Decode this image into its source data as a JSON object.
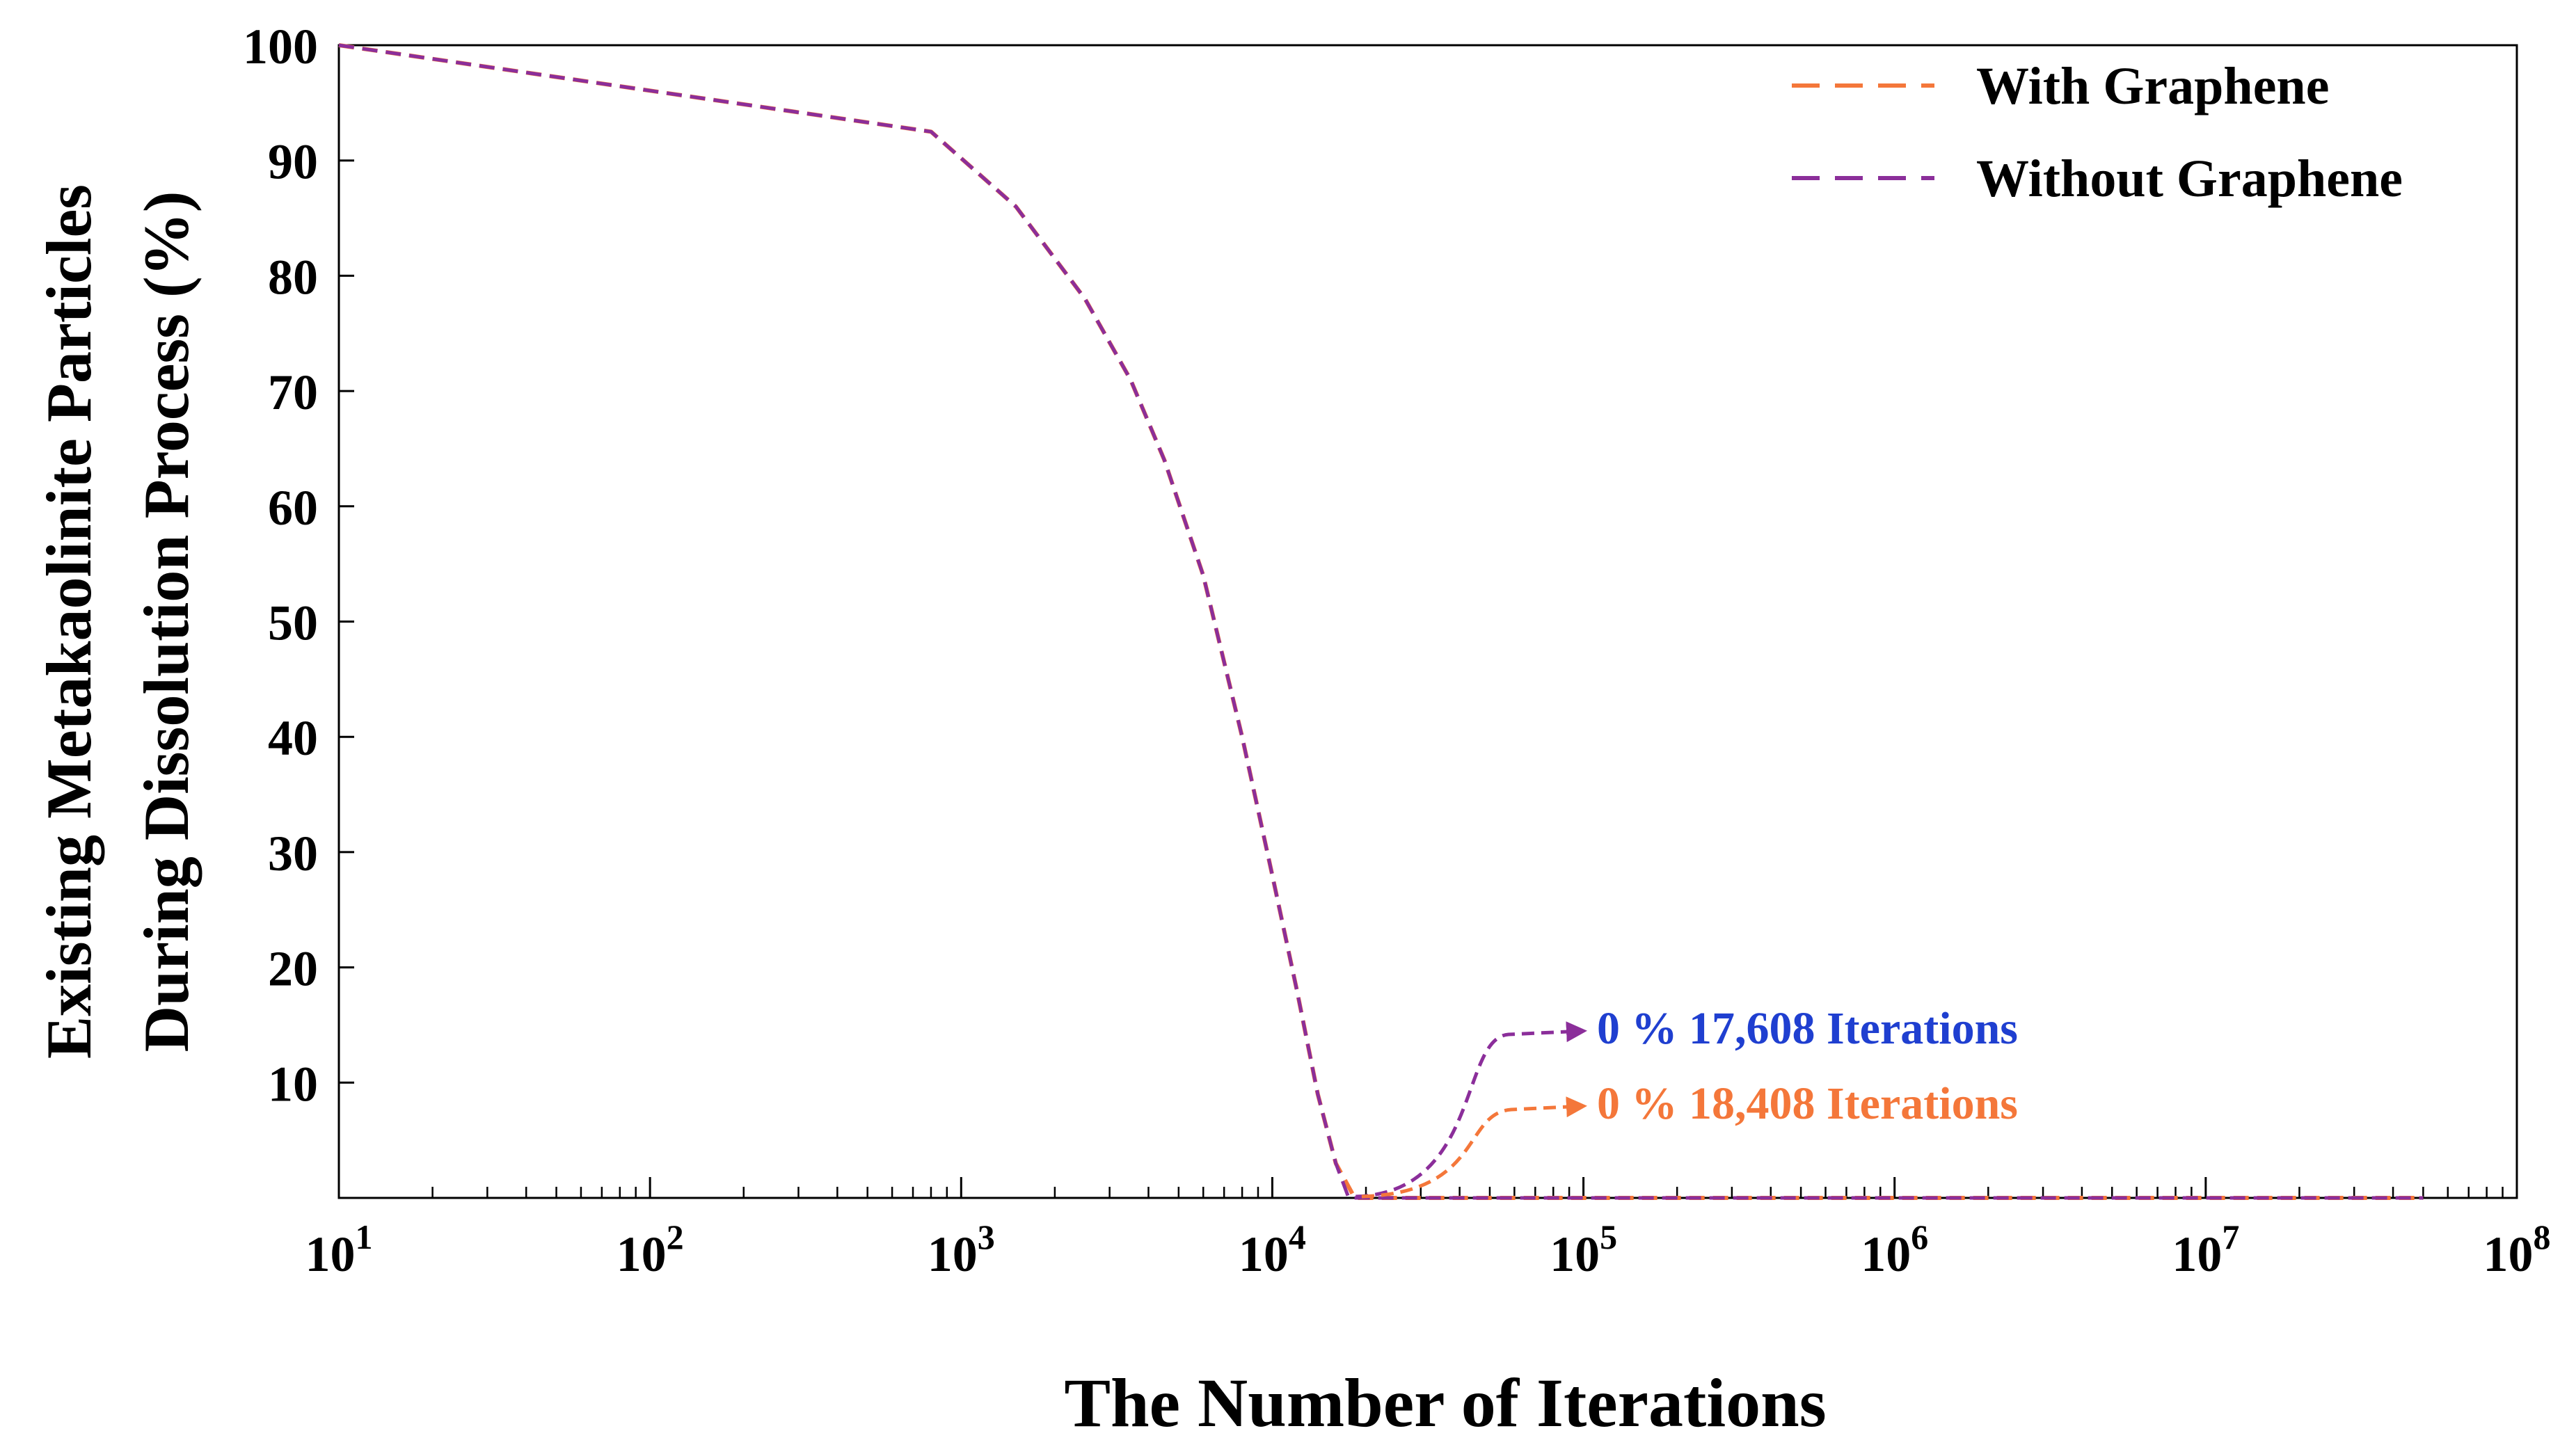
{
  "chart_data": {
    "type": "line",
    "title": "",
    "xlabel": "The Number of Iterations",
    "ylabel_line1": "Existing Metakaolinite Particles",
    "ylabel_line2": "During Dissolution Process (%)",
    "xscale": "log",
    "xlim": [
      10,
      100000000
    ],
    "ylim": [
      0,
      100
    ],
    "grid": false,
    "x_ticks": [
      {
        "value": 10,
        "base": "10",
        "exp": "1"
      },
      {
        "value": 100,
        "base": "10",
        "exp": "2"
      },
      {
        "value": 1000,
        "base": "10",
        "exp": "3"
      },
      {
        "value": 10000,
        "base": "10",
        "exp": "4"
      },
      {
        "value": 100000,
        "base": "10",
        "exp": "5"
      },
      {
        "value": 1000000,
        "base": "10",
        "exp": "6"
      },
      {
        "value": 10000000,
        "base": "10",
        "exp": "7"
      },
      {
        "value": 100000000,
        "base": "10",
        "exp": "8"
      }
    ],
    "y_ticks": [
      {
        "value": 10,
        "label": "10"
      },
      {
        "value": 20,
        "label": "20"
      },
      {
        "value": 30,
        "label": "30"
      },
      {
        "value": 40,
        "label": "40"
      },
      {
        "value": 50,
        "label": "50"
      },
      {
        "value": 60,
        "label": "60"
      },
      {
        "value": 70,
        "label": "70"
      },
      {
        "value": 80,
        "label": "80"
      },
      {
        "value": 90,
        "label": "90"
      },
      {
        "value": 100,
        "label": "100"
      }
    ],
    "legend_position": "top-right",
    "series": [
      {
        "name": "With Graphene",
        "color": "#F4773A",
        "x": [
          10,
          800,
          1500,
          2500,
          3500,
          4500,
          6000,
          8000,
          10000,
          12000,
          14000,
          16000,
          18408,
          100000,
          1000000,
          10000000,
          50000000
        ],
        "y": [
          100,
          92.5,
          86,
          78,
          71,
          64,
          54,
          40,
          28,
          18,
          9,
          3,
          0,
          0,
          0,
          0,
          0
        ]
      },
      {
        "name": "Without Graphene",
        "color": "#8B2E9A",
        "x": [
          10,
          800,
          1500,
          2500,
          3500,
          4500,
          6000,
          8000,
          10000,
          12000,
          14000,
          16000,
          17608,
          100000,
          1000000,
          10000000,
          50000000
        ],
        "y": [
          100,
          92.5,
          86,
          78,
          71,
          64,
          54,
          40,
          28,
          18,
          9,
          3,
          0,
          0,
          0,
          0,
          0
        ]
      }
    ],
    "annotations": [
      {
        "prefix": "0 % ",
        "text": "17,608 Iterations",
        "series": "Without Graphene",
        "color": "#1F3FD0",
        "arrow_color": "#8B2E9A"
      },
      {
        "prefix": "0 % ",
        "text": "18,408 Iterations",
        "series": "With Graphene",
        "color": "#F4773A",
        "arrow_color": "#F4773A"
      }
    ]
  }
}
